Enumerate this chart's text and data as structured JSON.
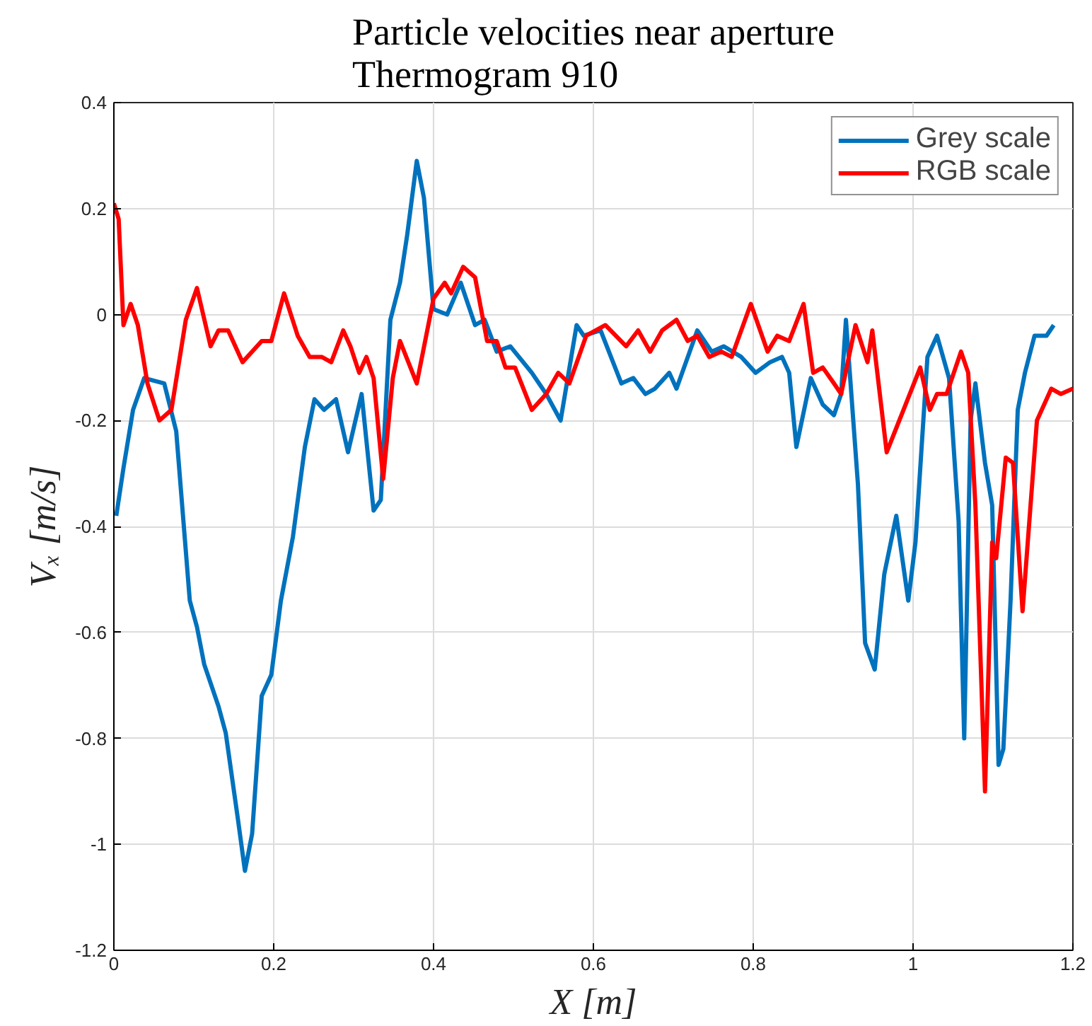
{
  "chart_data": {
    "type": "line",
    "title": "Particle velocities near aperture\nThermogram 910",
    "xlabel": "X [m]",
    "ylabel": "Vₓ [m/s]",
    "xlim": [
      0,
      1.2
    ],
    "xticks": [
      0,
      0.2,
      0.4,
      0.6,
      0.8,
      1,
      1.2
    ],
    "ylim": [
      -1.2,
      0.4
    ],
    "yticks": [
      -1.2,
      -1,
      -0.8,
      -0.6,
      -0.4,
      -0.2,
      0,
      0.2,
      0.4
    ],
    "grid": true,
    "legend": "top right",
    "series": [
      {
        "name": "Grey scale",
        "color": "#0072bd",
        "x": [
          0.003,
          0.012,
          0.024,
          0.038,
          0.063,
          0.078,
          0.095,
          0.104,
          0.113,
          0.131,
          0.14,
          0.155,
          0.164,
          0.173,
          0.185,
          0.197,
          0.209,
          0.224,
          0.239,
          0.251,
          0.263,
          0.278,
          0.293,
          0.31,
          0.325,
          0.334,
          0.346,
          0.358,
          0.367,
          0.379,
          0.388,
          0.4,
          0.417,
          0.434,
          0.452,
          0.464,
          0.479,
          0.496,
          0.523,
          0.541,
          0.559,
          0.579,
          0.588,
          0.609,
          0.635,
          0.65,
          0.665,
          0.677,
          0.695,
          0.704,
          0.73,
          0.748,
          0.763,
          0.785,
          0.803,
          0.821,
          0.836,
          0.845,
          0.854,
          0.872,
          0.887,
          0.901,
          0.91,
          0.916,
          0.931,
          0.94,
          0.952,
          0.964,
          0.979,
          0.994,
          1.003,
          1.018,
          1.03,
          1.045,
          1.057,
          1.064,
          1.072,
          1.078,
          1.09,
          1.099,
          1.107,
          1.113,
          1.122,
          1.131,
          1.14,
          1.152,
          1.167,
          1.176
        ],
        "values": [
          -0.38,
          -0.29,
          -0.18,
          -0.12,
          -0.13,
          -0.22,
          -0.54,
          -0.59,
          -0.66,
          -0.74,
          -0.79,
          -0.95,
          -1.05,
          -0.98,
          -0.72,
          -0.68,
          -0.54,
          -0.42,
          -0.25,
          -0.16,
          -0.18,
          -0.16,
          -0.26,
          -0.15,
          -0.37,
          -0.35,
          -0.01,
          0.06,
          0.15,
          0.29,
          0.22,
          0.01,
          0.0,
          0.06,
          -0.02,
          -0.01,
          -0.07,
          -0.06,
          -0.11,
          -0.15,
          -0.2,
          -0.02,
          -0.04,
          -0.03,
          -0.13,
          -0.12,
          -0.15,
          -0.14,
          -0.11,
          -0.14,
          -0.03,
          -0.07,
          -0.06,
          -0.08,
          -0.11,
          -0.09,
          -0.08,
          -0.11,
          -0.25,
          -0.12,
          -0.17,
          -0.19,
          -0.15,
          -0.01,
          -0.32,
          -0.62,
          -0.67,
          -0.49,
          -0.38,
          -0.54,
          -0.43,
          -0.08,
          -0.04,
          -0.12,
          -0.39,
          -0.8,
          -0.2,
          -0.13,
          -0.28,
          -0.36,
          -0.85,
          -0.82,
          -0.54,
          -0.18,
          -0.11,
          -0.04,
          -0.04,
          -0.02
        ]
      },
      {
        "name": "RGB scale",
        "color": "#ff0000",
        "x": [
          0,
          0.006,
          0.012,
          0.021,
          0.03,
          0.042,
          0.057,
          0.072,
          0.09,
          0.104,
          0.121,
          0.131,
          0.143,
          0.161,
          0.185,
          0.197,
          0.213,
          0.23,
          0.245,
          0.26,
          0.272,
          0.287,
          0.296,
          0.307,
          0.316,
          0.325,
          0.337,
          0.349,
          0.358,
          0.379,
          0.4,
          0.414,
          0.422,
          0.437,
          0.452,
          0.467,
          0.479,
          0.49,
          0.502,
          0.523,
          0.541,
          0.556,
          0.57,
          0.591,
          0.615,
          0.641,
          0.656,
          0.671,
          0.686,
          0.704,
          0.718,
          0.73,
          0.745,
          0.76,
          0.773,
          0.797,
          0.818,
          0.83,
          0.845,
          0.863,
          0.875,
          0.887,
          0.901,
          0.91,
          0.928,
          0.943,
          0.949,
          0.967,
          0.988,
          1.009,
          1.021,
          1.03,
          1.042,
          1.06,
          1.069,
          1.078,
          1.09,
          1.099,
          1.104,
          1.116,
          1.125,
          1.137,
          1.155,
          1.173,
          1.185,
          1.2
        ],
        "values": [
          0.21,
          0.18,
          -0.02,
          0.02,
          -0.02,
          -0.13,
          -0.2,
          -0.18,
          -0.01,
          0.05,
          -0.06,
          -0.03,
          -0.03,
          -0.09,
          -0.05,
          -0.05,
          0.04,
          -0.04,
          -0.08,
          -0.08,
          -0.09,
          -0.03,
          -0.06,
          -0.11,
          -0.08,
          -0.12,
          -0.31,
          -0.12,
          -0.05,
          -0.13,
          0.03,
          0.06,
          0.04,
          0.09,
          0.07,
          -0.05,
          -0.05,
          -0.1,
          -0.1,
          -0.18,
          -0.15,
          -0.11,
          -0.13,
          -0.04,
          -0.02,
          -0.06,
          -0.03,
          -0.07,
          -0.03,
          -0.01,
          -0.05,
          -0.04,
          -0.08,
          -0.07,
          -0.08,
          0.02,
          -0.07,
          -0.04,
          -0.05,
          0.02,
          -0.11,
          -0.1,
          -0.13,
          -0.15,
          -0.02,
          -0.09,
          -0.03,
          -0.26,
          -0.18,
          -0.1,
          -0.18,
          -0.15,
          -0.15,
          -0.07,
          -0.11,
          -0.36,
          -0.9,
          -0.43,
          -0.46,
          -0.27,
          -0.28,
          -0.56,
          -0.2,
          -0.14,
          -0.15,
          -0.14
        ]
      }
    ]
  }
}
